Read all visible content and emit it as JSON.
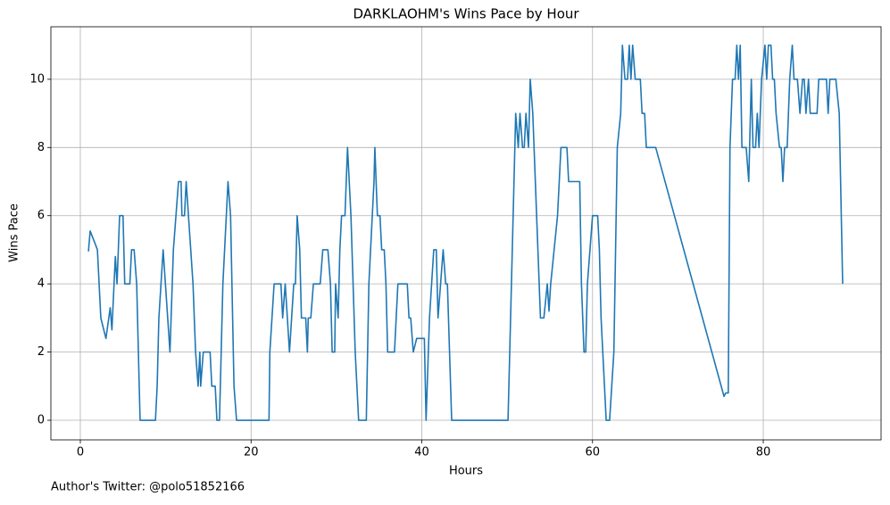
{
  "chart_data": {
    "type": "line",
    "title": "DARKLAOHM's Wins Pace by Hour",
    "xlabel": "Hours",
    "ylabel": "Wins Pace",
    "annotation": "Author's Twitter: @polo51852166",
    "grid": true,
    "xlim": [
      -3.45,
      93.8
    ],
    "ylim": [
      -0.575,
      11.54
    ],
    "xticks": [
      0,
      20,
      40,
      60,
      80
    ],
    "yticks": [
      0,
      2,
      4,
      6,
      8,
      10
    ],
    "series": [
      {
        "color": "#1f77b4",
        "x": [
          0.95,
          1.15,
          1.7,
          2.0,
          2.4,
          3.0,
          3.5,
          3.7,
          4.1,
          4.3,
          4.6,
          5.0,
          5.2,
          5.8,
          6.0,
          6.3,
          6.6,
          7.0,
          8.8,
          9.0,
          9.2,
          9.7,
          10.5,
          10.9,
          11.5,
          11.8,
          11.9,
          12.2,
          12.4,
          13.2,
          13.5,
          13.8,
          14.0,
          14.1,
          14.4,
          15.2,
          15.4,
          15.8,
          16.0,
          16.3,
          16.7,
          17.1,
          17.3,
          17.6,
          18.0,
          18.3,
          22.1,
          22.2,
          22.7,
          23.5,
          23.7,
          24.0,
          24.5,
          25.0,
          25.2,
          25.4,
          25.7,
          25.9,
          26.4,
          26.6,
          26.7,
          27.0,
          27.3,
          28.1,
          28.4,
          29.0,
          29.3,
          29.5,
          29.8,
          29.9,
          30.2,
          30.4,
          30.6,
          31.0,
          31.3,
          31.7,
          32.2,
          32.6,
          33.5,
          33.8,
          34.4,
          34.5,
          34.8,
          35.1,
          35.3,
          35.6,
          35.8,
          36.0,
          36.8,
          37.2,
          38.3,
          38.5,
          38.7,
          39.0,
          39.4,
          40.3,
          40.5,
          40.9,
          41.4,
          41.7,
          41.9,
          42.5,
          42.8,
          43.0,
          43.5,
          50.1,
          50.4,
          50.8,
          51.0,
          51.3,
          51.5,
          51.8,
          52.0,
          52.2,
          52.5,
          52.7,
          53.0,
          53.6,
          53.9,
          54.3,
          54.7,
          54.9,
          55.1,
          55.5,
          55.9,
          56.3,
          57.0,
          57.2,
          58.5,
          58.7,
          59.0,
          59.2,
          59.4,
          59.7,
          60.0,
          60.6,
          60.8,
          61.0,
          61.4,
          61.6,
          62.0,
          62.5,
          62.9,
          63.3,
          63.5,
          63.8,
          64.1,
          64.3,
          64.5,
          64.7,
          65.0,
          65.6,
          65.8,
          66.1,
          66.3,
          67.4,
          75.4,
          75.6,
          75.9,
          76.1,
          76.4,
          76.7,
          76.9,
          77.1,
          77.3,
          77.5,
          78.0,
          78.3,
          78.6,
          78.8,
          79.1,
          79.3,
          79.5,
          79.8,
          80.2,
          80.4,
          80.6,
          80.9,
          81.1,
          81.3,
          81.5,
          81.9,
          82.1,
          82.3,
          82.5,
          82.8,
          83.1,
          83.4,
          83.6,
          84.0,
          84.3,
          84.6,
          84.8,
          85.0,
          85.3,
          85.5,
          86.3,
          86.5,
          87.4,
          87.6,
          87.8,
          88.5,
          88.9,
          89.3
        ],
        "values": [
          4.95,
          5.55,
          5.2,
          5.0,
          3.0,
          2.4,
          3.3,
          2.65,
          4.8,
          4.0,
          6.0,
          6.0,
          4.0,
          4.0,
          5.0,
          5.0,
          4.0,
          0,
          0,
          1,
          3,
          5,
          2,
          5,
          7,
          7,
          6,
          6,
          7,
          4,
          2,
          1,
          2,
          1,
          2,
          2,
          1,
          1,
          0,
          0,
          4,
          6,
          7,
          6,
          1,
          0,
          0,
          2,
          4,
          4,
          3,
          4,
          2,
          4,
          4,
          6,
          5,
          3,
          3,
          2,
          3,
          3,
          4,
          4,
          5,
          5,
          4,
          2,
          2,
          4,
          3,
          5,
          6,
          6,
          8,
          6,
          2,
          0,
          0,
          4,
          7,
          8,
          6,
          6,
          5,
          5,
          4,
          2,
          2,
          4,
          4,
          3,
          3,
          2,
          2.4,
          2.4,
          0,
          3,
          5,
          5,
          3,
          5,
          4,
          4,
          0,
          0,
          3,
          7,
          9,
          8,
          9,
          8,
          8,
          9,
          8,
          10,
          9,
          5,
          3,
          3,
          4,
          3.2,
          4,
          5,
          6,
          8,
          8,
          7,
          7,
          4,
          2,
          2,
          4,
          5,
          6,
          6,
          5,
          3,
          1,
          0,
          0,
          2,
          8,
          9,
          11,
          10,
          10,
          11,
          10,
          11,
          10,
          10,
          9,
          9,
          8,
          8,
          0.7,
          0.8,
          0.8,
          8,
          10,
          10,
          11,
          10,
          11,
          8,
          8,
          7,
          10,
          8,
          8,
          9,
          8,
          10,
          11,
          10,
          11,
          11,
          10,
          10,
          9,
          8,
          8,
          7,
          8,
          8,
          10,
          11,
          10,
          10,
          9,
          10,
          10,
          9,
          10,
          9,
          9,
          10,
          10,
          9,
          10,
          10,
          9,
          4
        ]
      }
    ]
  }
}
